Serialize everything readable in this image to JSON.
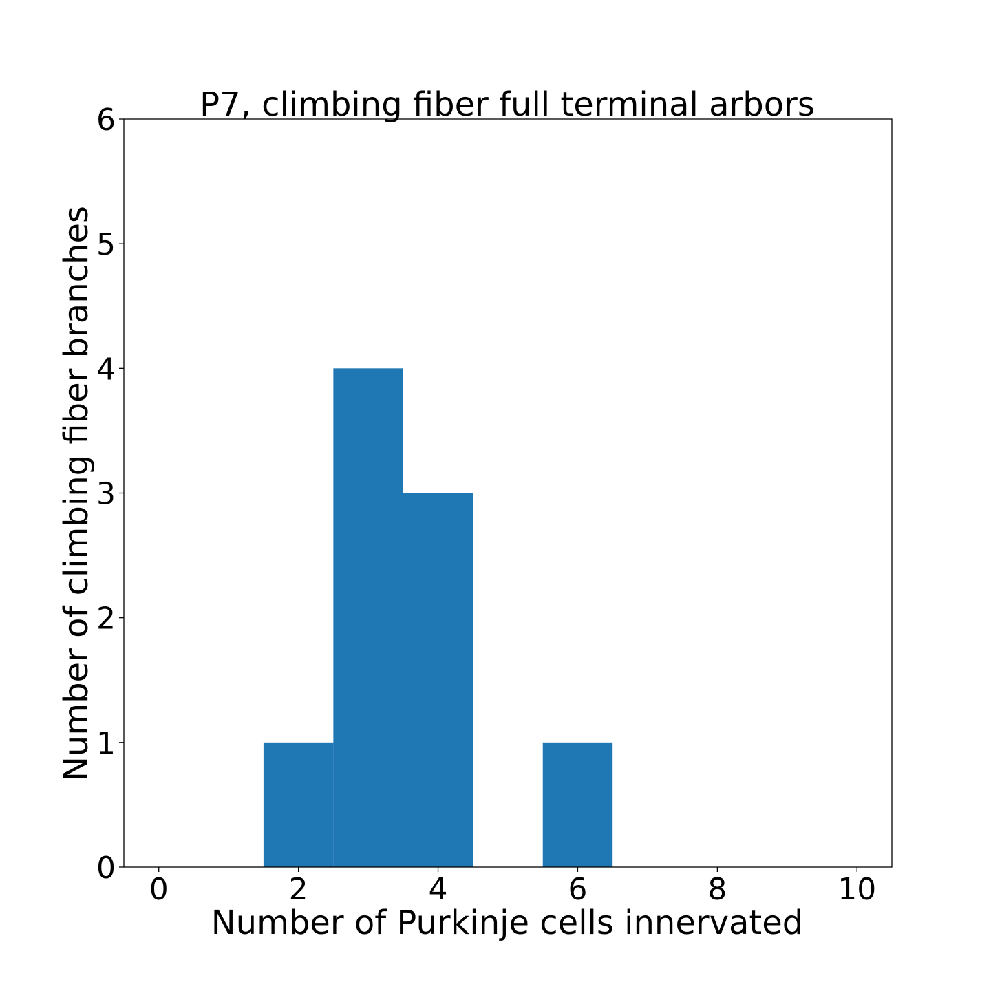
{
  "chart_data": {
    "type": "bar",
    "title": "P7, climbing fiber full terminal arbors",
    "xlabel": "Number of Purkinje cells innervated",
    "ylabel": "Number of climbing fiber branches",
    "xlim": [
      -0.5,
      10.5
    ],
    "ylim": [
      0,
      6
    ],
    "x_ticks": [
      "0",
      "2",
      "4",
      "6",
      "8",
      "10"
    ],
    "y_ticks": [
      "0",
      "1",
      "2",
      "3",
      "4",
      "5",
      "6"
    ],
    "bin_width": 1,
    "bins": [
      {
        "x": 0,
        "count": 0
      },
      {
        "x": 1,
        "count": 0
      },
      {
        "x": 2,
        "count": 1
      },
      {
        "x": 3,
        "count": 4
      },
      {
        "x": 4,
        "count": 3
      },
      {
        "x": 5,
        "count": 0
      },
      {
        "x": 6,
        "count": 1
      },
      {
        "x": 7,
        "count": 0
      },
      {
        "x": 8,
        "count": 0
      },
      {
        "x": 9,
        "count": 0
      },
      {
        "x": 10,
        "count": 0
      }
    ],
    "bar_color": "#1f77b4",
    "grid": false,
    "legend": "none"
  }
}
